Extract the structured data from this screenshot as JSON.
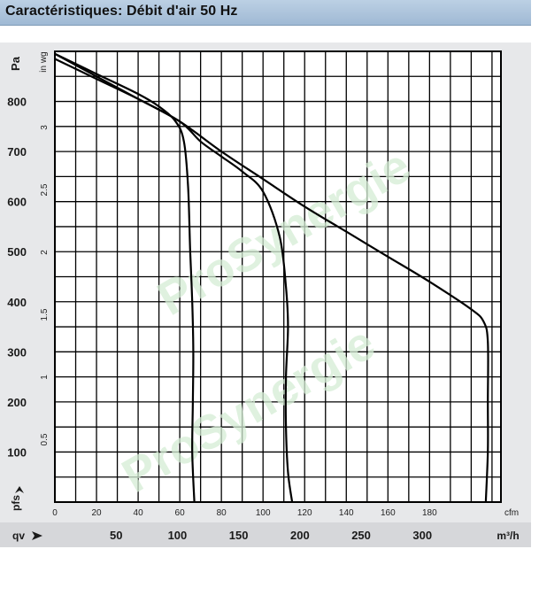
{
  "title": "Caractéristiques: Débit d'air 50 Hz",
  "watermark": "ProSynergie",
  "colors": {
    "title_bar": "#a9c1da",
    "panel": "#e7e8ea",
    "plot_bg": "#ffffff",
    "grid": "#000000",
    "curve": "#000000",
    "watermark": "#d4ecd4"
  },
  "chart_data": {
    "type": "line",
    "grid": true,
    "axes": {
      "x_cfm": {
        "label": "cfm",
        "ticks": [
          0,
          20,
          40,
          60,
          80,
          100,
          120,
          140,
          160,
          180
        ],
        "range": [
          0,
          214.29
        ]
      },
      "x_m3h": {
        "label": "m³/h",
        "symbol": "qv",
        "ticks": [
          50,
          100,
          150,
          200,
          250,
          300
        ],
        "range": [
          0,
          364.1
        ]
      },
      "y_pa": {
        "label": "Pa",
        "symbol": "pfs",
        "ticks": [
          100,
          200,
          300,
          400,
          500,
          600,
          700,
          800
        ],
        "range": [
          0,
          900
        ]
      },
      "y_inwg": {
        "label": "in wg",
        "ticks": [
          0.5,
          1,
          1.5,
          2,
          2.5,
          3
        ],
        "range": [
          0,
          3.61
        ]
      }
    },
    "series": [
      {
        "points": [
          [
            0,
            895
          ],
          [
            20,
            855
          ],
          [
            40,
            815
          ],
          [
            50,
            790
          ],
          [
            58,
            760
          ],
          [
            62,
            720
          ],
          [
            64,
            630
          ],
          [
            65,
            500
          ],
          [
            66,
            400
          ],
          [
            66.5,
            300
          ],
          [
            66.3,
            200
          ],
          [
            66,
            100
          ],
          [
            67,
            0
          ]
        ]
      },
      {
        "points": [
          [
            0,
            885
          ],
          [
            20,
            845
          ],
          [
            40,
            805
          ],
          [
            60,
            760
          ],
          [
            70,
            720
          ],
          [
            80,
            690
          ],
          [
            90,
            660
          ],
          [
            100,
            620
          ],
          [
            108,
            530
          ],
          [
            111,
            430
          ],
          [
            112,
            350
          ],
          [
            111,
            250
          ],
          [
            111,
            150
          ],
          [
            112,
            60
          ],
          [
            114,
            0
          ]
        ]
      },
      {
        "points": [
          [
            0,
            895
          ],
          [
            20,
            850
          ],
          [
            40,
            805
          ],
          [
            60,
            760
          ],
          [
            80,
            700
          ],
          [
            100,
            645
          ],
          [
            120,
            590
          ],
          [
            140,
            540
          ],
          [
            160,
            490
          ],
          [
            180,
            440
          ],
          [
            200,
            385
          ],
          [
            206,
            360
          ],
          [
            208,
            320
          ],
          [
            208,
            200
          ],
          [
            208,
            100
          ],
          [
            207,
            0
          ]
        ]
      }
    ]
  }
}
